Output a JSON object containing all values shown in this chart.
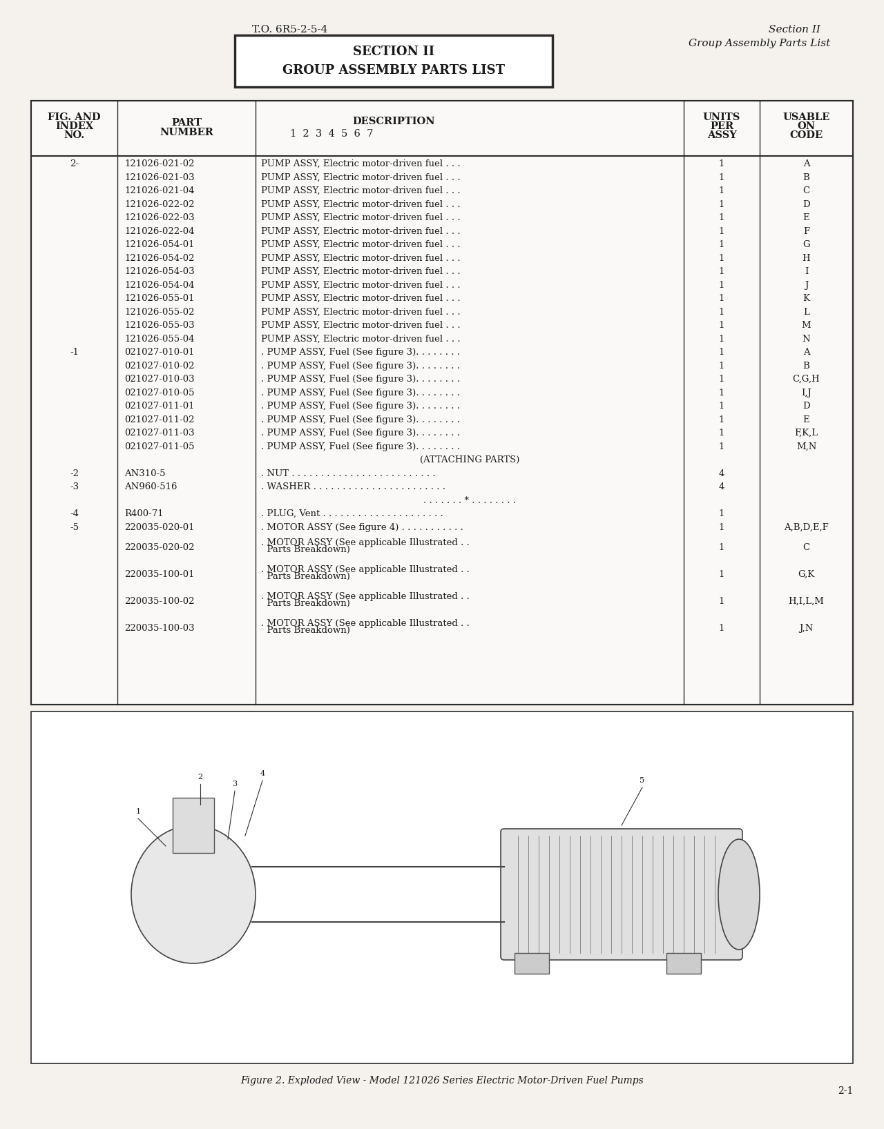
{
  "page_bg": "#f5f2ee",
  "header_left": "T.O. 6R5-2-5-4",
  "header_right_line1": "Section II",
  "header_right_line2": "Group Assembly Parts List",
  "section_box_line1": "SECTION II",
  "section_box_line2": "GROUP ASSEMBLY PARTS LIST",
  "col_headers": [
    "FIG. AND\nINDEX\nNO.",
    "PART\nNUMBER",
    "DESCRIPTION\n1 2 3 4 5 6 7",
    "UNITS\nPER\nASSY",
    "USABLE\nON\nCODE"
  ],
  "table_rows": [
    [
      "2-",
      "121026-021-02",
      "PUMP ASSY, Electric motor-driven fuel . . .",
      "1",
      "A"
    ],
    [
      "",
      "121026-021-03",
      "PUMP ASSY, Electric motor-driven fuel . . .",
      "1",
      "B"
    ],
    [
      "",
      "121026-021-04",
      "PUMP ASSY, Electric motor-driven fuel . . .",
      "1",
      "C"
    ],
    [
      "",
      "121026-022-02",
      "PUMP ASSY, Electric motor-driven fuel . . .",
      "1",
      "D"
    ],
    [
      "",
      "121026-022-03",
      "PUMP ASSY, Electric motor-driven fuel . . .",
      "1",
      "E"
    ],
    [
      "",
      "121026-022-04",
      "PUMP ASSY, Electric motor-driven fuel . . .",
      "1",
      "F"
    ],
    [
      "",
      "121026-054-01",
      "PUMP ASSY, Electric motor-driven fuel . . .",
      "1",
      "G"
    ],
    [
      "",
      "121026-054-02",
      "PUMP ASSY, Electric motor-driven fuel . . .",
      "1",
      "H"
    ],
    [
      "",
      "121026-054-03",
      "PUMP ASSY, Electric motor-driven fuel . . .",
      "1",
      "I"
    ],
    [
      "",
      "121026-054-04",
      "PUMP ASSY, Electric motor-driven fuel . . .",
      "1",
      "J"
    ],
    [
      "",
      "121026-055-01",
      "PUMP ASSY, Electric motor-driven fuel . . .",
      "1",
      "K"
    ],
    [
      "",
      "121026-055-02",
      "PUMP ASSY, Electric motor-driven fuel . . .",
      "1",
      "L"
    ],
    [
      "",
      "121026-055-03",
      "PUMP ASSY, Electric motor-driven fuel . . .",
      "1",
      "M"
    ],
    [
      "",
      "121026-055-04",
      "PUMP ASSY, Electric motor-driven fuel . . .",
      "1",
      "N"
    ],
    [
      "-1",
      "021027-010-01",
      ". PUMP ASSY, Fuel (See figure 3). . . . . . . .",
      "1",
      "A"
    ],
    [
      "",
      "021027-010-02",
      ". PUMP ASSY, Fuel (See figure 3). . . . . . . .",
      "1",
      "B"
    ],
    [
      "",
      "021027-010-03",
      ". PUMP ASSY, Fuel (See figure 3). . . . . . . .",
      "1",
      "C,G,H"
    ],
    [
      "",
      "021027-010-05",
      ". PUMP ASSY, Fuel (See figure 3). . . . . . . .",
      "1",
      "I,J"
    ],
    [
      "",
      "021027-011-01",
      ". PUMP ASSY, Fuel (See figure 3). . . . . . . .",
      "1",
      "D"
    ],
    [
      "",
      "021027-011-02",
      ". PUMP ASSY, Fuel (See figure 3). . . . . . . .",
      "1",
      "E"
    ],
    [
      "",
      "021027-011-03",
      ". PUMP ASSY, Fuel (See figure 3). . . . . . . .",
      "1",
      "F,K,L"
    ],
    [
      "",
      "021027-011-05",
      ". PUMP ASSY, Fuel (See figure 3). . . . . . . .",
      "1",
      "M,N"
    ],
    [
      "",
      "",
      "(ATTACHING PARTS)",
      "",
      ""
    ],
    [
      "-2",
      "AN310-5",
      ". NUT . . . . . . . . . . . . . . . . . . . . . . . . .",
      "4",
      ""
    ],
    [
      "-3",
      "AN960-516",
      ". WASHER . . . . . . . . . . . . . . . . . . . . . . .",
      "4",
      ""
    ],
    [
      "",
      "",
      ". . . . . . . * . . . . . . . .",
      "",
      ""
    ],
    [
      "-4",
      "R400-71",
      ". PLUG, Vent . . . . . . . . . . . . . . . . . . . . .",
      "1",
      ""
    ],
    [
      "-5",
      "220035-020-01",
      ". MOTOR ASSY (See figure 4) . . . . . . . . . . .",
      "1",
      "A,B,D,E,F"
    ],
    [
      "",
      "220035-020-02",
      ". MOTOR ASSY (See applicable Illustrated . .\n  Parts Breakdown)",
      "1",
      "C"
    ],
    [
      "",
      "220035-100-01",
      ". MOTOR ASSY (See applicable Illustrated . .\n  Parts Breakdown)",
      "1",
      "G,K"
    ],
    [
      "",
      "220035-100-02",
      ". MOTOR ASSY (See applicable Illustrated . .\n  Parts Breakdown)",
      "1",
      "H,I,L,M"
    ],
    [
      "",
      "220035-100-03",
      ". MOTOR ASSY (See applicable Illustrated . .\n  Parts Breakdown)",
      "1",
      "J,N"
    ]
  ],
  "figure_caption": "Figure 2. Exploded View - Model 121026 Series Electric Motor-Driven Fuel Pumps",
  "page_number": "2-1",
  "text_color": "#1a1a1a",
  "table_border_color": "#2a2a2a",
  "table_bg": "#faf9f7"
}
